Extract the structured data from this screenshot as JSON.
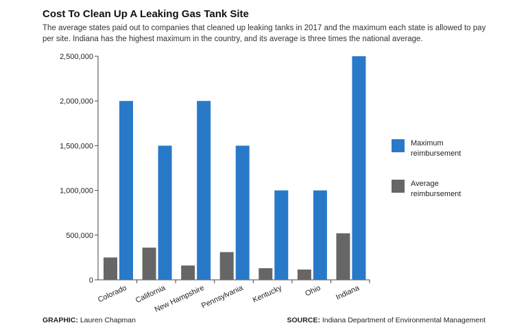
{
  "title": "Cost To Clean Up A Leaking Gas Tank Site",
  "subtitle": "The average states paid out to companies that cleaned up leaking tanks in 2017 and the maximum each state is allowed to pay per site. Indiana has the highest maximum in the country, and its average is three times the national average.",
  "footer": {
    "graphic_label": "GRAPHIC:",
    "graphic_value": "Lauren Chapman",
    "source_label": "SOURCE:",
    "source_value": "Indiana Department of Environmental Management"
  },
  "chart_data": {
    "type": "bar",
    "title": "Cost To Clean Up A Leaking Gas Tank Site",
    "xlabel": "",
    "ylabel": "",
    "ylim": [
      0,
      2500000
    ],
    "yticks": [
      0,
      500000,
      1000000,
      1500000,
      2000000,
      2500000
    ],
    "ytick_labels": [
      "0",
      "500,000",
      "1,000,000",
      "1,500,000",
      "2,000,000",
      "2,500,000"
    ],
    "grid": false,
    "legend_position": "right",
    "categories": [
      "Colorado",
      "California",
      "New Hampshire",
      "Pennsylvania",
      "Kentucky",
      "Ohio",
      "Indiana"
    ],
    "series": [
      {
        "name": "Average reimbursement",
        "color": "#666666",
        "values": [
          250000,
          360000,
          160000,
          310000,
          130000,
          115000,
          520000
        ]
      },
      {
        "name": "Maximum reimbursement",
        "color": "#2979c9",
        "values": [
          2000000,
          1500000,
          2000000,
          1500000,
          1000000,
          1000000,
          2500000
        ]
      }
    ],
    "legend": [
      {
        "line1": "Maximum",
        "line2": "reimbursement",
        "color": "#2979c9"
      },
      {
        "line1": "Average",
        "line2": "reimbursement",
        "color": "#666666"
      }
    ]
  }
}
